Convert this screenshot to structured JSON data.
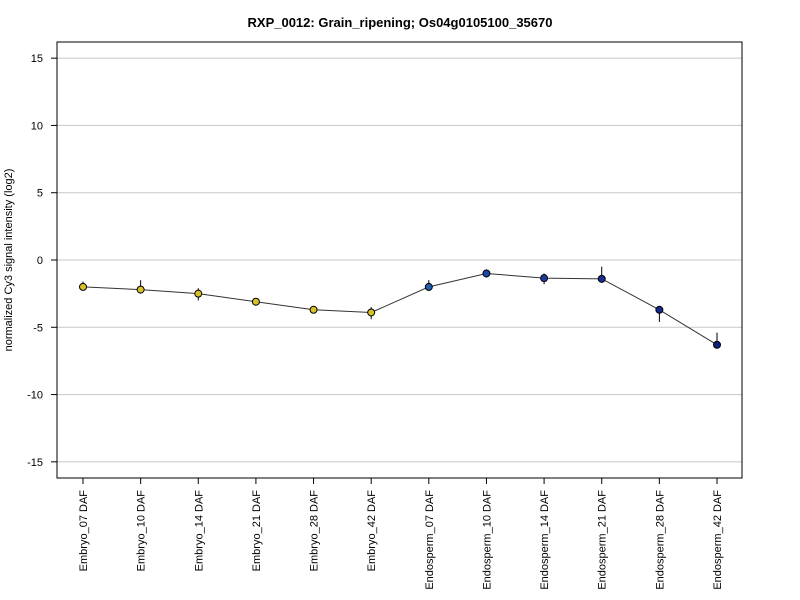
{
  "chart_data": {
    "type": "line",
    "title": "RXP_0012: Grain_ripening; Os04g0105100_35670",
    "xlabel": "",
    "ylabel": "normalized Cy3 signal intensity (log2)",
    "ylim": [
      -16.2,
      16.2
    ],
    "yticks": [
      -15,
      -10,
      -5,
      0,
      5,
      10,
      15
    ],
    "grid": true,
    "categories": [
      "Embryo_07 DAF",
      "Embryo_10 DAF",
      "Embryo_14 DAF",
      "Embryo_21 DAF",
      "Embryo_28 DAF",
      "Embryo_42 DAF",
      "Endosperm_07 DAF",
      "Endosperm_10 DAF",
      "Endosperm_14 DAF",
      "Endosperm_21 DAF",
      "Endosperm_28 DAF",
      "Endosperm_42 DAF"
    ],
    "series": [
      {
        "values": [
          -2.0,
          -2.2,
          -2.5,
          -3.1,
          -3.7,
          -3.9,
          -2.0,
          -1.0,
          -1.35,
          -1.4,
          -3.7,
          -6.3
        ],
        "error_low": [
          -2.2,
          -2.5,
          -3.0,
          -3.3,
          -3.9,
          -4.4,
          -2.3,
          -1.3,
          -1.8,
          -1.7,
          -4.6,
          -6.5
        ],
        "error_high": [
          -1.6,
          -1.5,
          -2.1,
          -2.9,
          -3.5,
          -3.5,
          -1.5,
          -0.7,
          -1.0,
          -0.5,
          -3.5,
          -5.4
        ],
        "point_colors": [
          "#d8c12a",
          "#d8c12a",
          "#d8c12a",
          "#d8c12a",
          "#d8c12a",
          "#d8c12a",
          "#1f5fb0",
          "#1a47a8",
          "#1a3a9c",
          "#1a2f92",
          "#142a8c",
          "#0f1f80"
        ],
        "line_color": "#333333"
      }
    ]
  }
}
